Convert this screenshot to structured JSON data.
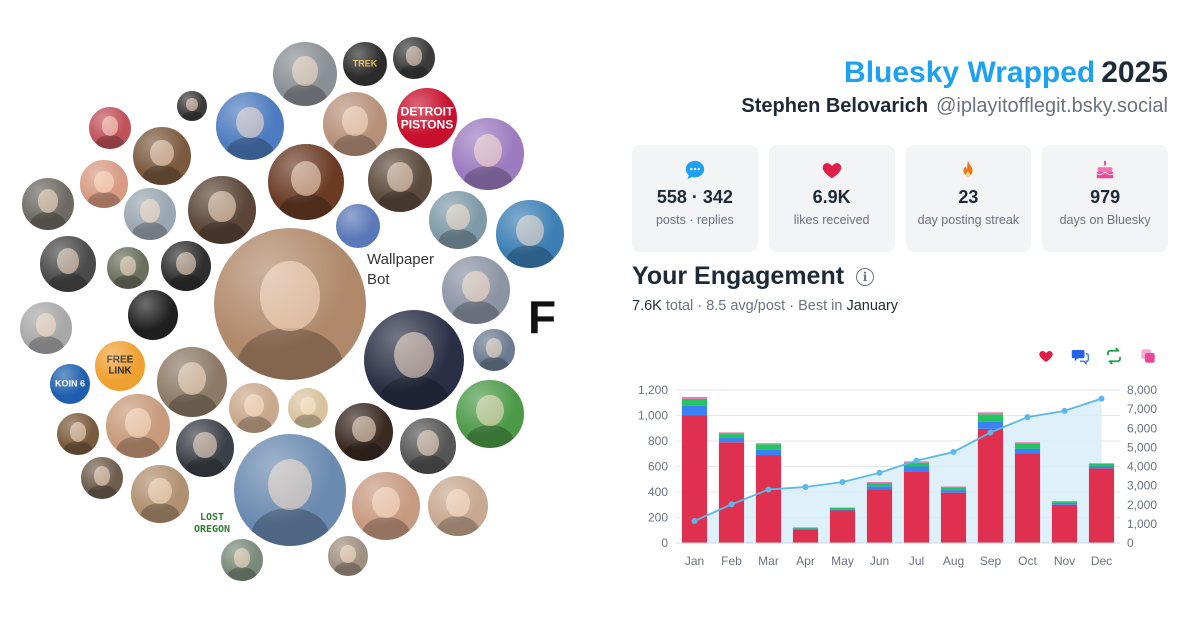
{
  "header": {
    "brand": "Bluesky Wrapped",
    "year": "2025",
    "display_name": "Stephen Belovarich",
    "handle": "@iplayitofflegit.bsky.social"
  },
  "cluster": {
    "avatars": [
      {
        "label": "",
        "color": "#8a8f95",
        "kind": "photo"
      },
      {
        "label": "TREK",
        "color": "#2b2b2b",
        "kind": "logo",
        "text_color": "#e7b23a"
      },
      {
        "label": "",
        "color": "#3a3a3a",
        "kind": "photo"
      },
      {
        "label": "DETROIT PISTONS",
        "color": "#c8102e",
        "kind": "logo",
        "text_color": "#ffffff"
      },
      {
        "label": "",
        "color": "#9c7bc0",
        "kind": "photo"
      },
      {
        "label": "",
        "color": "#4c7bbf",
        "kind": "photo"
      },
      {
        "label": "",
        "color": "#b8917a",
        "kind": "photo"
      },
      {
        "label": "",
        "color": "#6a3a24",
        "kind": "photo"
      },
      {
        "label": "",
        "color": "#5c4a3c",
        "kind": "photo"
      },
      {
        "label": "",
        "color": "#5b78b8",
        "kind": "logo"
      },
      {
        "label": "",
        "color": "#7e9aa8",
        "kind": "photo"
      },
      {
        "label": "",
        "color": "#3b7fb5",
        "kind": "photo"
      },
      {
        "label": "",
        "color": "#c0505a",
        "kind": "photo"
      },
      {
        "label": "",
        "color": "#7b5a3e",
        "kind": "photo"
      },
      {
        "label": "",
        "color": "#3a3a3a",
        "kind": "photo"
      },
      {
        "label": "",
        "color": "#d89a82",
        "kind": "photo"
      },
      {
        "label": "",
        "color": "#6e6a63",
        "kind": "photo"
      },
      {
        "label": "",
        "color": "#9aa6b0",
        "kind": "photo"
      },
      {
        "label": "",
        "color": "#4a4a4a",
        "kind": "photo"
      },
      {
        "label": "",
        "color": "#6a6f5c",
        "kind": "photo"
      },
      {
        "label": "",
        "color": "#2f2f2f",
        "kind": "photo"
      },
      {
        "label": "",
        "color": "#5a4536",
        "kind": "photo"
      },
      {
        "label": "",
        "color": "#b0886a",
        "kind": "photo"
      },
      {
        "label": "",
        "color": "#8c94a4",
        "kind": "photo"
      },
      {
        "label": "",
        "color": "#6b7c92",
        "kind": "photo"
      },
      {
        "label": "",
        "color": "#1f1f1f",
        "kind": "logo"
      },
      {
        "label": "FREE LINK",
        "color": "#f0a030",
        "kind": "logo",
        "text_color": "#111111"
      },
      {
        "label": "",
        "color": "#a8a8a8",
        "kind": "photo"
      },
      {
        "label": "",
        "color": "#2a2f45",
        "kind": "photo"
      },
      {
        "label": "",
        "color": "#c9a88c",
        "kind": "photo"
      },
      {
        "label": "",
        "color": "#4c9a48",
        "kind": "photo"
      },
      {
        "label": "KOIN 6",
        "color": "#1d5fae",
        "kind": "logo",
        "text_color": "#ffffff"
      },
      {
        "label": "",
        "color": "#7a5a3c",
        "kind": "photo"
      },
      {
        "label": "",
        "color": "#c79a7a",
        "kind": "photo"
      },
      {
        "label": "",
        "color": "#8c7a66",
        "kind": "photo"
      },
      {
        "label": "",
        "color": "#d9c39e",
        "kind": "photo"
      },
      {
        "label": "",
        "color": "#3a2a22",
        "kind": "photo"
      },
      {
        "label": "",
        "color": "#555555",
        "kind": "photo"
      },
      {
        "label": "",
        "color": "#6e5c4c",
        "kind": "photo"
      },
      {
        "label": "",
        "color": "#3b3f48",
        "kind": "photo"
      },
      {
        "label": "",
        "color": "#b09070",
        "kind": "photo"
      },
      {
        "label": "",
        "color": "#6a8ab0",
        "kind": "photo"
      },
      {
        "label": "",
        "color": "#c89a80",
        "kind": "photo"
      },
      {
        "label": "",
        "color": "#c8a890",
        "kind": "photo"
      },
      {
        "label": "",
        "color": "#7a8a7a",
        "kind": "photo"
      },
      {
        "label": "",
        "color": "#a09080",
        "kind": "photo"
      }
    ],
    "wallpaper_bot_label": "Wallpaper Bot",
    "lost_oregon_label": "LOST OREGON",
    "big_f_label": "F"
  },
  "stats": [
    {
      "icon": "chat-bubble-icon",
      "value": "558 · 342",
      "label": "posts · replies",
      "color": "#1da1f2"
    },
    {
      "icon": "heart-icon",
      "value": "6.9K",
      "label": "likes received",
      "color": "#e11d48"
    },
    {
      "icon": "flame-icon",
      "value": "23",
      "label": "day posting streak",
      "color": "#f97316"
    },
    {
      "icon": "cake-icon",
      "value": "979",
      "label": "days on Bluesky",
      "color": "#ec4899"
    }
  ],
  "engagement": {
    "title": "Your Engagement",
    "total": "7.6K",
    "total_suffix": "total",
    "avg": "8.5 avg/post",
    "best_prefix": "Best in",
    "best_month": "January"
  },
  "legend": [
    {
      "icon": "heart-icon",
      "color": "#e11d48"
    },
    {
      "icon": "reply-bubble-icon",
      "color": "#2563eb"
    },
    {
      "icon": "repost-icon",
      "color": "#16a34a"
    },
    {
      "icon": "quote-icon",
      "color": "#ec4899"
    }
  ],
  "chart_data": {
    "type": "bar",
    "categories": [
      "Jan",
      "Feb",
      "Mar",
      "Apr",
      "May",
      "Jun",
      "Jul",
      "Aug",
      "Sep",
      "Oct",
      "Nov",
      "Dec"
    ],
    "series": [
      {
        "values": [
          1000,
          790,
          690,
          105,
          255,
          420,
          560,
          395,
          895,
          705,
          300,
          585
        ],
        "color": "#e0304f"
      },
      {
        "values": [
          80,
          40,
          45,
          8,
          10,
          25,
          40,
          20,
          60,
          35,
          15,
          15
        ],
        "color": "#3b82f6"
      },
      {
        "values": [
          50,
          30,
          40,
          7,
          10,
          25,
          30,
          20,
          55,
          40,
          10,
          20
        ],
        "color": "#22c55e"
      },
      {
        "values": [
          15,
          8,
          8,
          3,
          4,
          8,
          10,
          8,
          15,
          10,
          4,
          6
        ],
        "color": "#f472b6"
      }
    ],
    "cumulative": [
      1150,
      2020,
      2800,
      2930,
      3190,
      3670,
      4310,
      4760,
      5780,
      6580,
      6910,
      7550
    ],
    "ylim": [
      0,
      1200
    ],
    "yticks": [
      "0",
      "200",
      "400",
      "600",
      "800",
      "1,000",
      "1,200"
    ],
    "y2lim": [
      0,
      8000
    ],
    "y2ticks": [
      "0",
      "1,000",
      "2,000",
      "3,000",
      "4,000",
      "5,000",
      "6,000",
      "7,000",
      "8,000"
    ],
    "grid": true,
    "line_color": "#5bb8e8",
    "area_color": "#d6ecf8"
  }
}
